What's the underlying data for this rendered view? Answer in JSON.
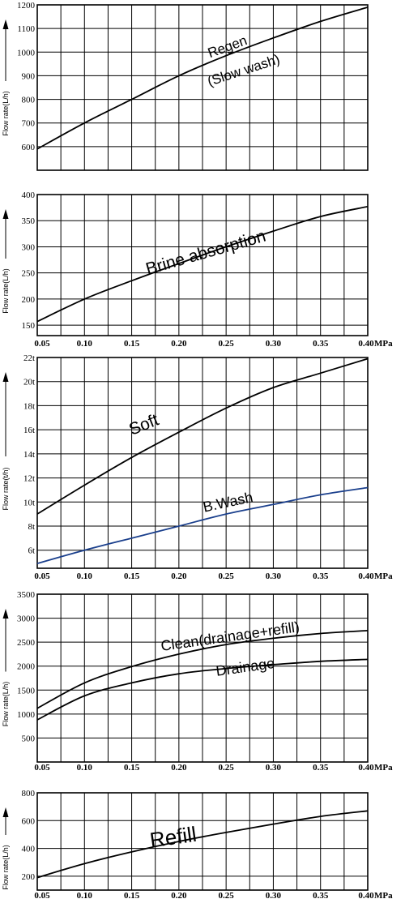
{
  "chart_data": [
    {
      "type": "line",
      "ylabel": "Flow rate(L/h)",
      "xlim": [
        0.05,
        0.4
      ],
      "ylim": [
        500,
        1200
      ],
      "y_ticks": [
        "600",
        "700",
        "800",
        "900",
        "1000",
        "1100",
        "1200"
      ],
      "x_tick_labels": [],
      "x_unit": "",
      "series": [
        {
          "name": "Regen (Slow wash)",
          "color": "#000000",
          "x": [
            0.05,
            0.1,
            0.15,
            0.2,
            0.25,
            0.3,
            0.35,
            0.4
          ],
          "y": [
            590,
            700,
            800,
            900,
            985,
            1060,
            1130,
            1190
          ]
        }
      ],
      "annotations": [
        {
          "text": "Regen",
          "x": 0.253,
          "y": 1005,
          "rotate": -20,
          "size": 17
        },
        {
          "text": "(Slow wash)",
          "x": 0.27,
          "y": 905,
          "rotate": -18,
          "size": 17
        }
      ]
    },
    {
      "type": "line",
      "ylabel": "Flow rate(L/h)",
      "xlim": [
        0.05,
        0.4
      ],
      "ylim": [
        130,
        400
      ],
      "y_ticks": [
        "150",
        "200",
        "250",
        "300",
        "350",
        "400"
      ],
      "x_tick_labels": [
        "0.05",
        "0.10",
        "0.15",
        "0.20",
        "0.25",
        "0.30",
        "0.35",
        "0.40"
      ],
      "x_unit": "MPa",
      "series": [
        {
          "name": "Brine absorption",
          "color": "#000000",
          "x": [
            0.05,
            0.1,
            0.15,
            0.2,
            0.25,
            0.3,
            0.35,
            0.4
          ],
          "y": [
            157,
            200,
            235,
            268,
            300,
            330,
            358,
            377
          ]
        }
      ],
      "annotations": [
        {
          "text": "Brine absorption",
          "x": 0.23,
          "y": 279,
          "rotate": -16,
          "size": 21
        }
      ]
    },
    {
      "type": "line",
      "ylabel": "Flow rate(t/h)",
      "xlim": [
        0.05,
        0.4
      ],
      "ylim": [
        4.5,
        22
      ],
      "y_ticks": [
        "6t",
        "8t",
        "10t",
        "12t",
        "14t",
        "16t",
        "18t",
        "20t",
        "22t"
      ],
      "x_tick_labels": [
        "0.05",
        "0.10",
        "0.15",
        "0.20",
        "0.25",
        "0.30",
        "0.35",
        "0.40"
      ],
      "x_unit": "MPa",
      "series": [
        {
          "name": "Soft",
          "color": "#000000",
          "x": [
            0.05,
            0.1,
            0.15,
            0.2,
            0.25,
            0.3,
            0.35,
            0.4
          ],
          "y": [
            9,
            11.4,
            13.7,
            15.8,
            17.8,
            19.5,
            20.7,
            21.9
          ]
        },
        {
          "name": "B.Wash",
          "color": "#1a3f8c",
          "x": [
            0.05,
            0.1,
            0.15,
            0.2,
            0.25,
            0.3,
            0.35,
            0.4
          ],
          "y": [
            4.9,
            6.0,
            7.0,
            8.0,
            9.0,
            9.8,
            10.6,
            11.2
          ]
        }
      ],
      "annotations": [
        {
          "text": "Soft",
          "x": 0.165,
          "y": 16.0,
          "rotate": -22,
          "size": 21
        },
        {
          "text": "B.Wash",
          "x": 0.253,
          "y": 9.6,
          "rotate": -12,
          "size": 18
        }
      ]
    },
    {
      "type": "line",
      "ylabel": "Flow rate(L/h)",
      "xlim": [
        0.05,
        0.4
      ],
      "ylim": [
        0,
        3500
      ],
      "y_ticks": [
        "500",
        "1000",
        "1500",
        "2000",
        "2500",
        "3000",
        "3500"
      ],
      "x_tick_labels": [
        "0.05",
        "0.10",
        "0.15",
        "0.20",
        "0.25",
        "0.30",
        "0.35",
        "0.40"
      ],
      "x_unit": "MPa",
      "series": [
        {
          "name": "Clean(drainage+refill)",
          "color": "#000000",
          "x": [
            0.05,
            0.1,
            0.15,
            0.2,
            0.25,
            0.3,
            0.35,
            0.4
          ],
          "y": [
            1120,
            1650,
            1990,
            2250,
            2450,
            2580,
            2680,
            2740
          ]
        },
        {
          "name": "Drainage",
          "color": "#000000",
          "x": [
            0.05,
            0.1,
            0.15,
            0.2,
            0.25,
            0.3,
            0.35,
            0.4
          ],
          "y": [
            880,
            1380,
            1650,
            1840,
            1950,
            2030,
            2100,
            2140
          ]
        }
      ],
      "annotations": [
        {
          "text": "Clean(drainage+refill)",
          "x": 0.255,
          "y": 2520,
          "rotate": -8,
          "size": 18
        },
        {
          "text": "Drainage",
          "x": 0.271,
          "y": 1880,
          "rotate": -8,
          "size": 18
        }
      ]
    },
    {
      "type": "line",
      "ylabel": "Flow rate(L/h)",
      "xlim": [
        0.05,
        0.4
      ],
      "ylim": [
        100,
        800
      ],
      "y_ticks": [
        "200",
        "400",
        "600",
        "800"
      ],
      "x_tick_labels": [
        "0.05",
        "0.10",
        "0.15",
        "0.20",
        "0.25",
        "0.30",
        "0.35",
        "0.40"
      ],
      "x_unit": "MPa",
      "series": [
        {
          "name": "Refill",
          "color": "#000000",
          "x": [
            0.05,
            0.1,
            0.15,
            0.2,
            0.25,
            0.3,
            0.35,
            0.4
          ],
          "y": [
            190,
            290,
            375,
            450,
            515,
            575,
            630,
            670
          ]
        }
      ],
      "annotations": [
        {
          "text": "Refill",
          "x": 0.195,
          "y": 430,
          "rotate": -8,
          "size": 26
        }
      ]
    }
  ]
}
